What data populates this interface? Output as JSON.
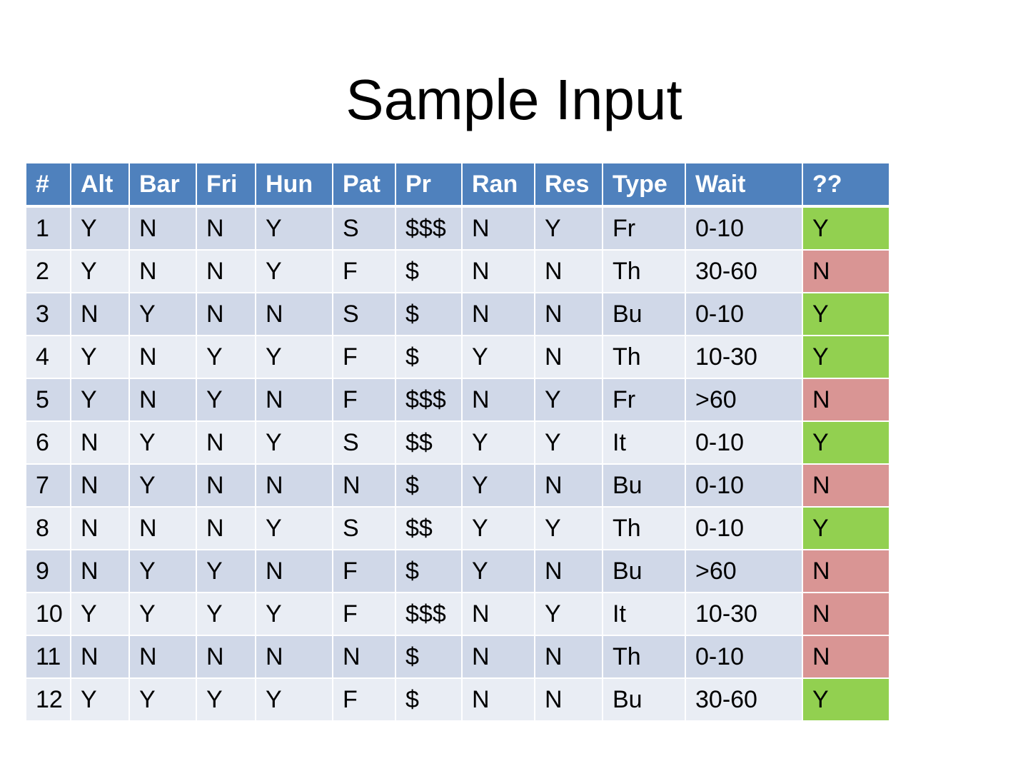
{
  "title": "Sample Input",
  "table": {
    "headers": [
      "#",
      "Alt",
      "Bar",
      "Fri",
      "Hun",
      "Pat",
      "Pr",
      "Ran",
      "Res",
      "Type",
      "Wait",
      "??"
    ],
    "rows": [
      [
        "1",
        "Y",
        "N",
        "N",
        "Y",
        "S",
        "$$$",
        "N",
        "Y",
        "Fr",
        "0-10",
        "Y"
      ],
      [
        "2",
        "Y",
        "N",
        "N",
        "Y",
        "F",
        "$",
        "N",
        "N",
        "Th",
        "30-60",
        "N"
      ],
      [
        "3",
        "N",
        "Y",
        "N",
        "N",
        "S",
        "$",
        "N",
        "N",
        "Bu",
        "0-10",
        "Y"
      ],
      [
        "4",
        "Y",
        "N",
        "Y",
        "Y",
        "F",
        "$",
        "Y",
        "N",
        "Th",
        "10-30",
        "Y"
      ],
      [
        "5",
        "Y",
        "N",
        "Y",
        "N",
        "F",
        "$$$",
        "N",
        "Y",
        "Fr",
        ">60",
        "N"
      ],
      [
        "6",
        "N",
        "Y",
        "N",
        "Y",
        "S",
        "$$",
        "Y",
        "Y",
        "It",
        "0-10",
        "Y"
      ],
      [
        "7",
        "N",
        "Y",
        "N",
        "N",
        "N",
        "$",
        "Y",
        "N",
        "Bu",
        "0-10",
        "N"
      ],
      [
        "8",
        "N",
        "N",
        "N",
        "Y",
        "S",
        "$$",
        "Y",
        "Y",
        "Th",
        "0-10",
        "Y"
      ],
      [
        "9",
        "N",
        "Y",
        "Y",
        "N",
        "F",
        "$",
        "Y",
        "N",
        "Bu",
        ">60",
        "N"
      ],
      [
        "10",
        "Y",
        "Y",
        "Y",
        "Y",
        "F",
        "$$$",
        "N",
        "Y",
        "It",
        "10-30",
        "N"
      ],
      [
        "11",
        "N",
        "N",
        "N",
        "N",
        "N",
        "$",
        "N",
        "N",
        "Th",
        "0-10",
        "N"
      ],
      [
        "12",
        "Y",
        "Y",
        "Y",
        "Y",
        "F",
        "$",
        "N",
        "N",
        "Bu",
        "30-60",
        "Y"
      ]
    ]
  },
  "colors": {
    "header": "#4F81BD",
    "row_odd": "#D0D8E8",
    "row_even": "#E9EDF4",
    "yes": "#92D050",
    "no": "#D99594"
  }
}
